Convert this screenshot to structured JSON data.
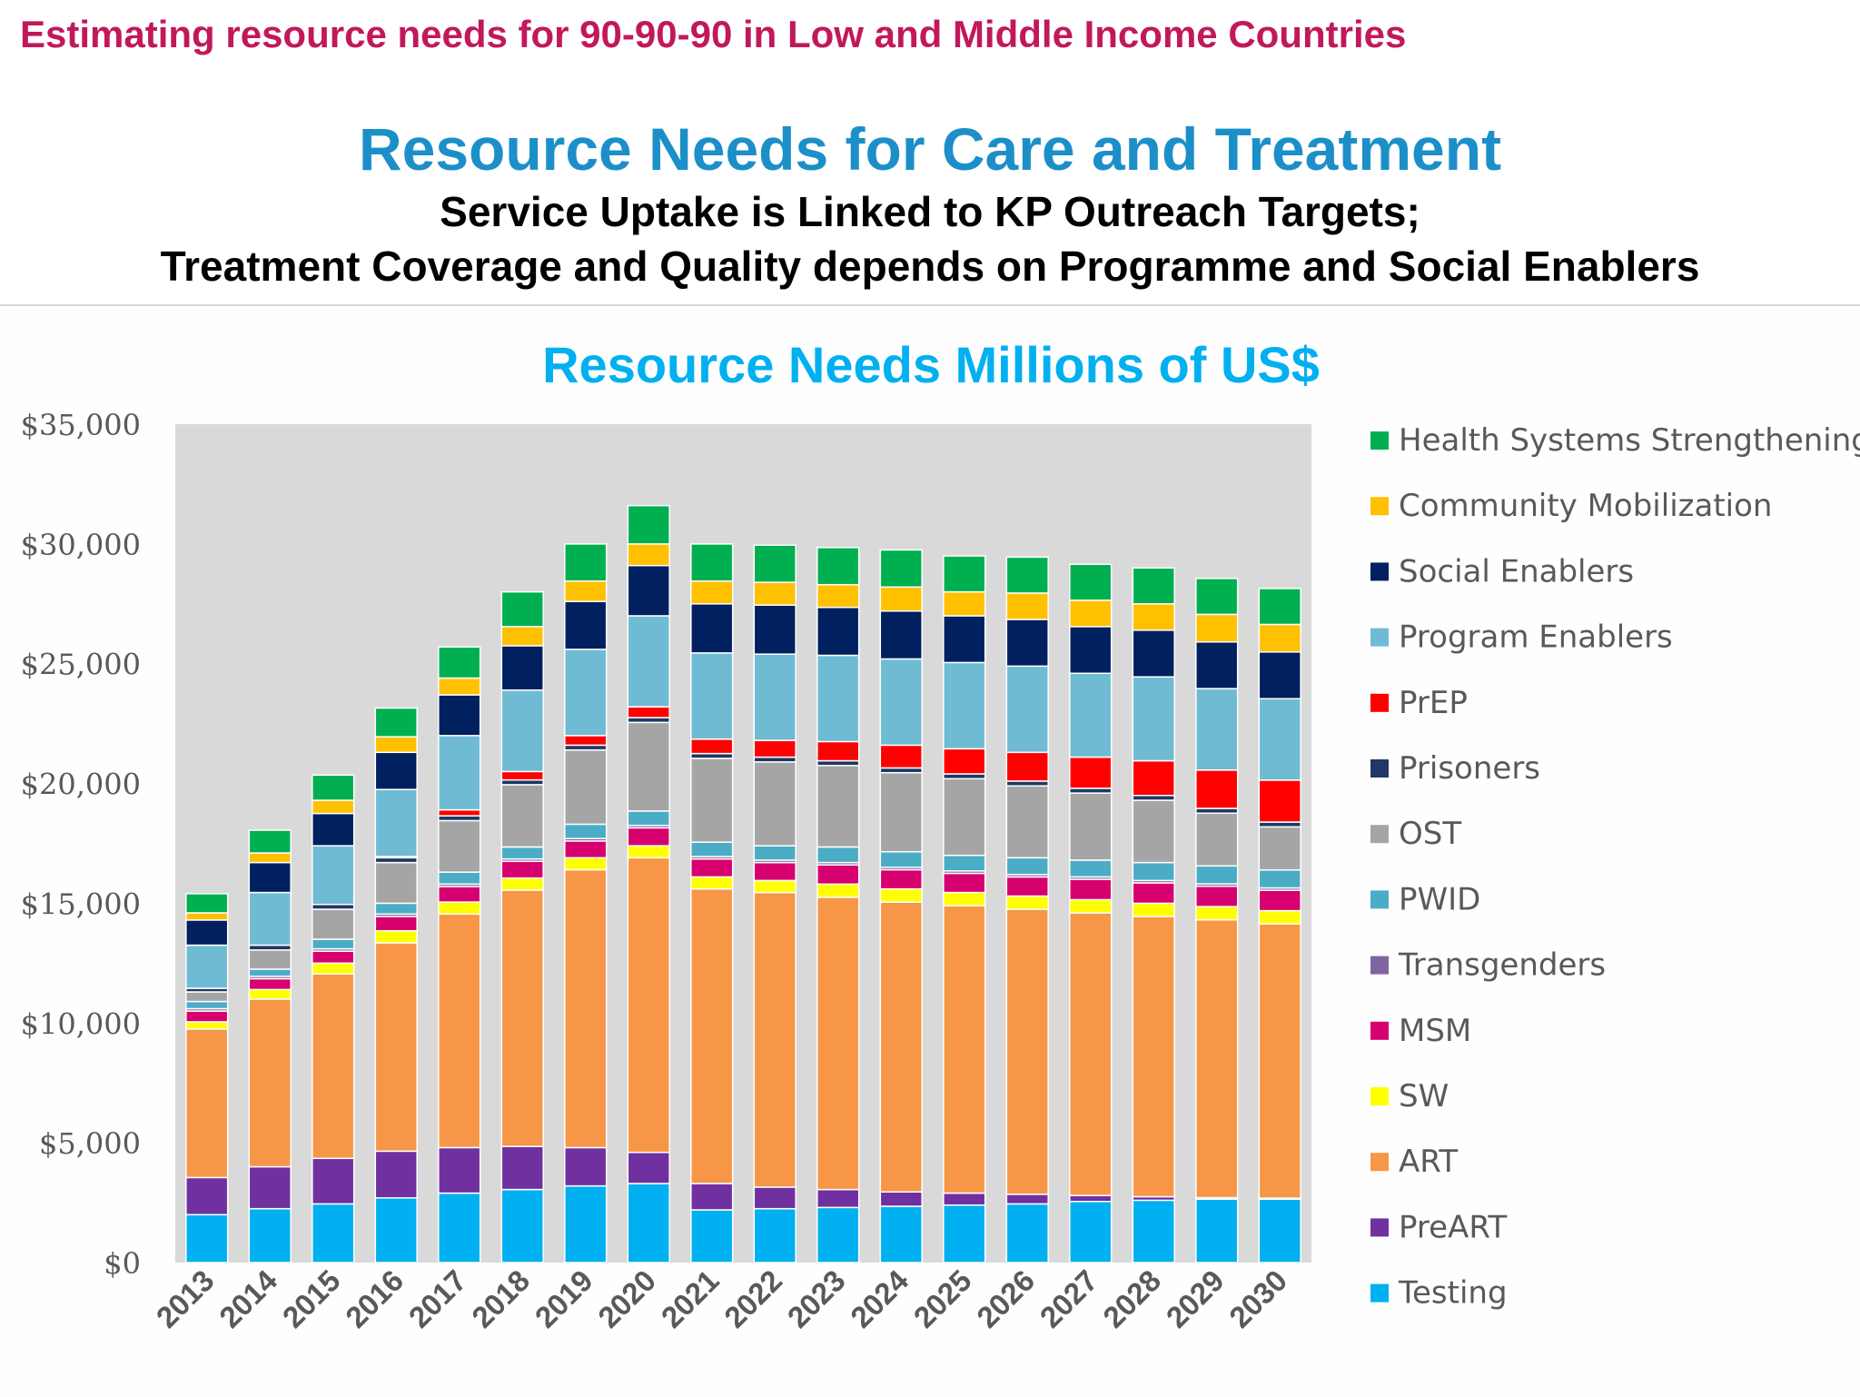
{
  "header": {
    "top_title": "Estimating resource needs for 90-90-90 in Low and Middle Income Countries",
    "main_title": "Resource Needs for Care and Treatment",
    "subtitle_line1": "Service Uptake is Linked to KP Outreach Targets;",
    "subtitle_line2": "Treatment Coverage and Quality depends on Programme and Social Enablers"
  },
  "chart_data": {
    "type": "bar",
    "stacked": true,
    "title": "Resource Needs Millions of US$",
    "xlabel": "",
    "ylabel": "",
    "ylim": [
      0,
      35000
    ],
    "yticks": [
      0,
      5000,
      10000,
      15000,
      20000,
      25000,
      30000,
      35000
    ],
    "ytick_labels": [
      "$0",
      "$5,000",
      "$10,000",
      "$15,000",
      "$20,000",
      "$25,000",
      "$30,000",
      "$35,000"
    ],
    "grid": false,
    "legend_position": "right",
    "categories": [
      "2013",
      "2014",
      "2015",
      "2016",
      "2017",
      "2018",
      "2019",
      "2020",
      "2021",
      "2022",
      "2023",
      "2024",
      "2025",
      "2026",
      "2027",
      "2028",
      "2029",
      "2030"
    ],
    "series": [
      {
        "name": "Testing",
        "color": "#00b0f0",
        "values": [
          2000,
          2250,
          2450,
          2700,
          2900,
          3050,
          3200,
          3300,
          2200,
          2250,
          2300,
          2350,
          2400,
          2450,
          2550,
          2600,
          2650,
          2650
        ]
      },
      {
        "name": "PreART",
        "color": "#7030a0",
        "values": [
          1550,
          1750,
          1900,
          1950,
          1900,
          1800,
          1600,
          1300,
          1100,
          900,
          750,
          600,
          500,
          400,
          250,
          150,
          60,
          40
        ]
      },
      {
        "name": "ART",
        "color": "#f79646",
        "values": [
          6200,
          7000,
          7700,
          8700,
          9750,
          10700,
          11600,
          12300,
          12300,
          12300,
          12200,
          12100,
          12000,
          11900,
          11800,
          11700,
          11600,
          11450
        ]
      },
      {
        "name": "SW",
        "color": "#ffff00",
        "values": [
          300,
          400,
          450,
          500,
          500,
          500,
          500,
          500,
          500,
          500,
          550,
          550,
          550,
          550,
          550,
          550,
          550,
          550
        ]
      },
      {
        "name": "MSM",
        "color": "#d6006e",
        "values": [
          450,
          450,
          500,
          600,
          650,
          700,
          700,
          750,
          750,
          750,
          800,
          800,
          800,
          800,
          850,
          850,
          850,
          850
        ]
      },
      {
        "name": "Transgenders",
        "color": "#8064a2",
        "values": [
          100,
          100,
          100,
          100,
          100,
          100,
          100,
          100,
          100,
          100,
          100,
          100,
          100,
          100,
          100,
          100,
          100,
          100
        ]
      },
      {
        "name": "PWID",
        "color": "#4bacc6",
        "values": [
          300,
          300,
          400,
          450,
          500,
          500,
          600,
          600,
          600,
          600,
          650,
          650,
          650,
          700,
          700,
          750,
          750,
          750
        ]
      },
      {
        "name": "OST",
        "color": "#a5a5a5",
        "values": [
          400,
          800,
          1250,
          1700,
          2150,
          2600,
          3100,
          3700,
          3500,
          3500,
          3400,
          3300,
          3200,
          3000,
          2800,
          2600,
          2200,
          1800
        ]
      },
      {
        "name": "Prisoners",
        "color": "#1f3864",
        "values": [
          150,
          200,
          200,
          200,
          200,
          200,
          200,
          200,
          200,
          200,
          200,
          200,
          200,
          200,
          200,
          200,
          200,
          200
        ]
      },
      {
        "name": "PrEP",
        "color": "#ff0000",
        "values": [
          0,
          0,
          0,
          50,
          250,
          350,
          400,
          450,
          600,
          700,
          800,
          950,
          1050,
          1200,
          1300,
          1450,
          1600,
          1750
        ]
      },
      {
        "name": "Program Enablers",
        "color": "#6fbbd3",
        "values": [
          1800,
          2200,
          2450,
          2800,
          3100,
          3400,
          3600,
          3800,
          3600,
          3600,
          3600,
          3600,
          3600,
          3600,
          3500,
          3500,
          3400,
          3400
        ]
      },
      {
        "name": "Social Enablers",
        "color": "#002060",
        "values": [
          1050,
          1250,
          1350,
          1550,
          1700,
          1850,
          2000,
          2100,
          2050,
          2050,
          2000,
          2000,
          1950,
          1950,
          1950,
          1950,
          1950,
          1950
        ]
      },
      {
        "name": "Community Mobilization",
        "color": "#ffc000",
        "values": [
          300,
          400,
          550,
          650,
          700,
          800,
          850,
          900,
          950,
          950,
          950,
          1000,
          1000,
          1100,
          1100,
          1100,
          1150,
          1150
        ]
      },
      {
        "name": "Health Systems Strengthening",
        "color": "#00b050",
        "values": [
          800,
          950,
          1050,
          1200,
          1300,
          1450,
          1550,
          1600,
          1550,
          1550,
          1550,
          1550,
          1500,
          1500,
          1500,
          1500,
          1500,
          1500
        ]
      }
    ]
  }
}
